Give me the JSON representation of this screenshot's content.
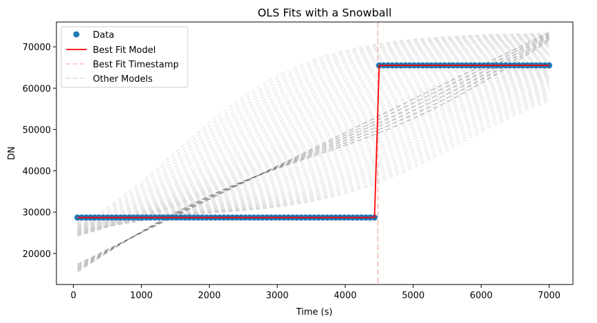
{
  "chart_data": {
    "type": "line",
    "title": "OLS Fits with a Snowball",
    "xlabel": "Time (s)",
    "ylabel": "DN",
    "xlim": [
      -250,
      7350
    ],
    "ylim": [
      12500,
      76000
    ],
    "xticks": [
      0,
      1000,
      2000,
      3000,
      4000,
      5000,
      6000,
      7000
    ],
    "yticks": [
      20000,
      30000,
      40000,
      50000,
      60000,
      70000
    ],
    "grid": false,
    "legend_position": "top-left",
    "legend": [
      "Data",
      "Best Fit Model",
      "Best Fit Timestamp",
      "Other Models"
    ],
    "colors": {
      "data": "#1f77b4",
      "best_fit_model": "#ff0000",
      "best_fit_timestamp": "#ffb3b3",
      "other_models": "#cccccc",
      "dense_models": "#555555"
    },
    "series": [
      {
        "name": "Data",
        "style": "markers",
        "segments": [
          {
            "x_start": 60,
            "x_end": 4430,
            "y": 28700
          },
          {
            "x_start": 4500,
            "x_end": 7000,
            "y": 65500
          }
        ],
        "n_points": 110
      },
      {
        "name": "Best Fit Model",
        "style": "solid",
        "x": [
          60,
          4430,
          4500,
          7000
        ],
        "y": [
          28700,
          28700,
          65500,
          65500
        ]
      },
      {
        "name": "Best Fit Timestamp",
        "style": "dashed-vertical",
        "x": 4480
      },
      {
        "name": "Other Models",
        "style": "dashed",
        "description_range": {
          "x_start": 60,
          "x_end": 7000,
          "y_start_range": [
            15500,
            29000
          ],
          "y_end_range": [
            64500,
            73500
          ]
        }
      }
    ]
  }
}
